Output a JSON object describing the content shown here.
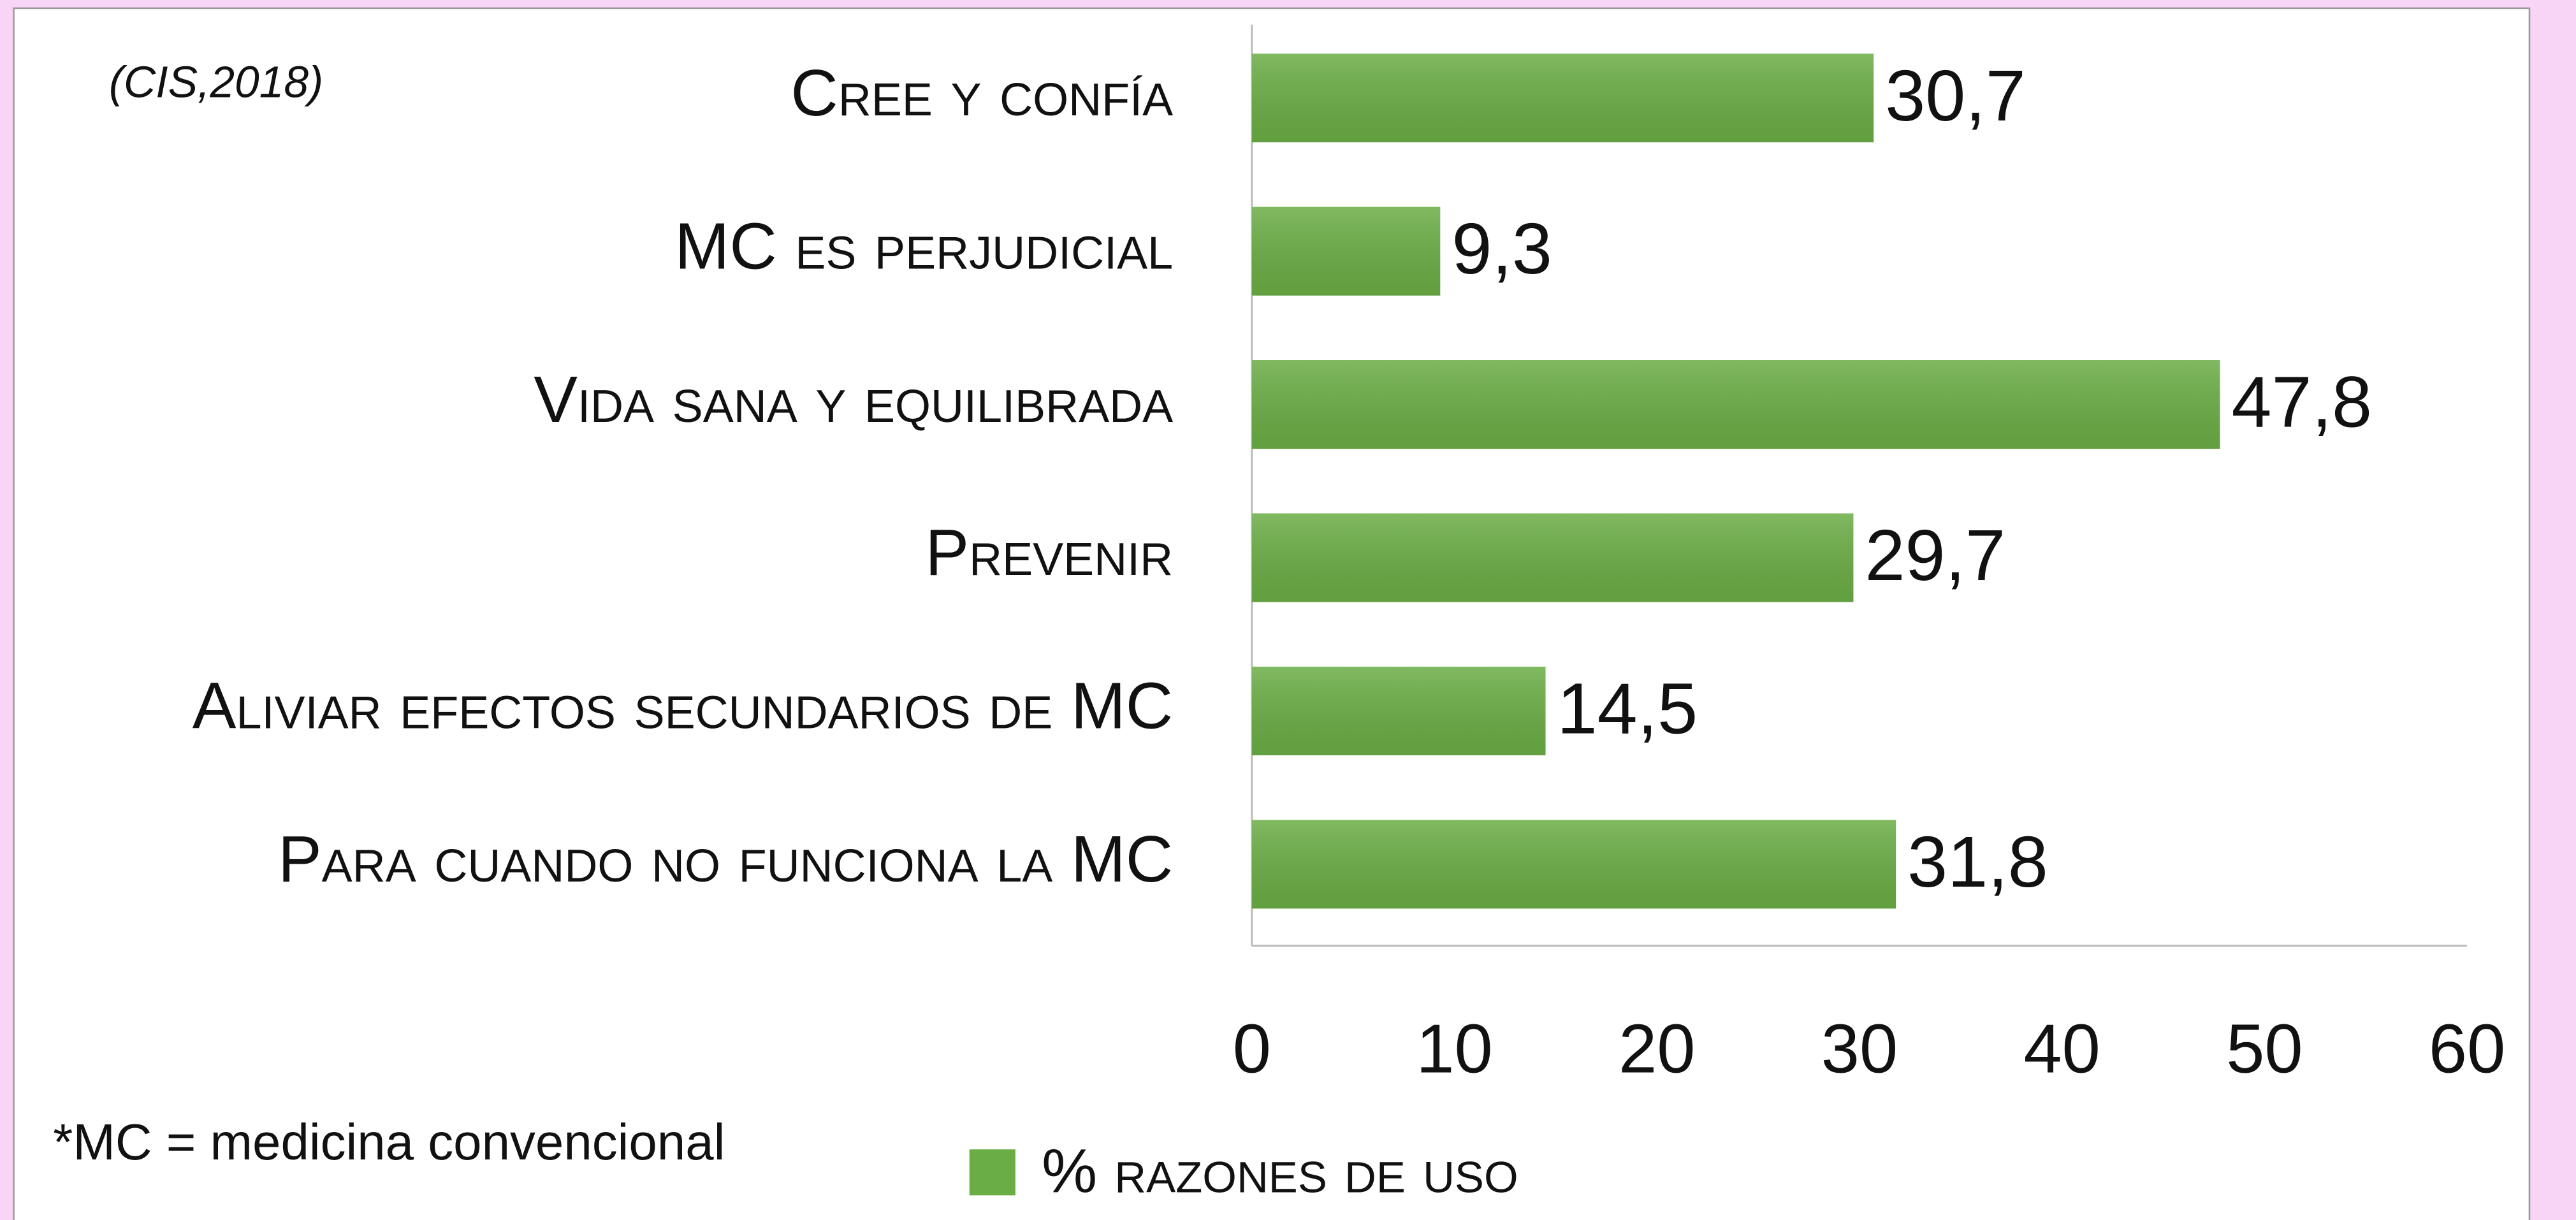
{
  "chart_data": {
    "type": "bar",
    "orientation": "horizontal",
    "source": "(CIS,2018)",
    "note": "*MC = medicina convencional",
    "categories": [
      "Cree y confía",
      "MC es perjudicial",
      "Vida sana y equilibrada",
      "Prevenir",
      "Aliviar efectos secundarios de MC",
      "Para cuando no funciona la MC"
    ],
    "series": [
      {
        "name": "% razones de uso",
        "color": "#6aad45",
        "values": [
          30.7,
          9.3,
          47.8,
          29.7,
          14.5,
          31.8
        ],
        "value_labels": [
          "30,7",
          "9,3",
          "47,8",
          "29,7",
          "14,5",
          "31,8"
        ]
      }
    ],
    "xlim": [
      0,
      60
    ],
    "xticks": [
      0,
      10,
      20,
      30,
      40,
      50,
      60
    ],
    "grid": false,
    "legend": "bottom"
  }
}
